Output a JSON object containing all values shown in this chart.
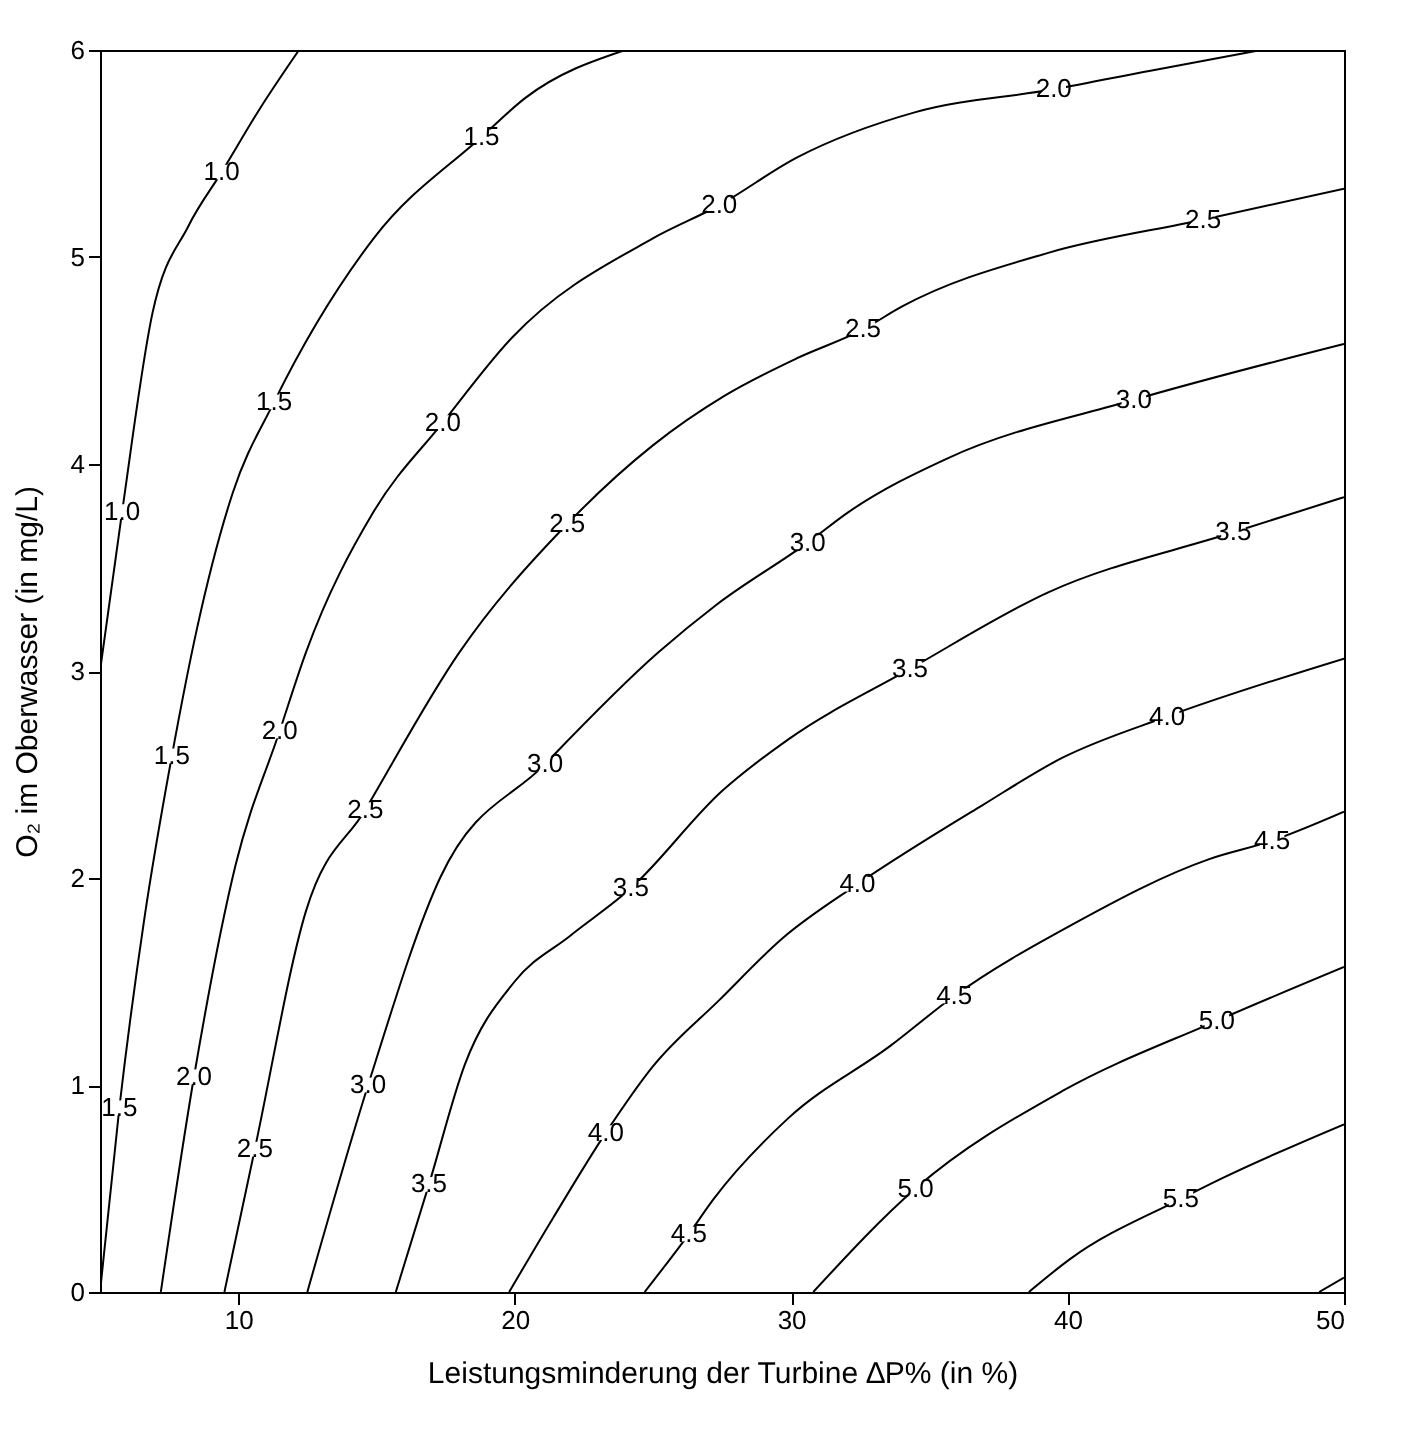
{
  "chart_data": {
    "type": "line",
    "xlabel": "Leistungsminderung der Turbine ∆P%  (in %)",
    "ylabel": "O₂ im Oberwasser (in mg/L)",
    "xlim": [
      5,
      50
    ],
    "xticks": [
      10,
      20,
      30,
      40,
      50
    ],
    "ylim": [
      0,
      6
    ],
    "yticks": [
      0,
      1,
      2,
      3,
      4,
      5,
      6
    ],
    "grid": false,
    "marker": "none",
    "line_style": "solid",
    "series": [
      {
        "color": "#000000",
        "x": [
          5,
          5.8,
          6.9,
          8.2,
          9.4,
          10.8,
          12.2
        ],
        "values": [
          3.0,
          3.77,
          4.73,
          5.15,
          5.41,
          5.72,
          6.0
        ]
      },
      {
        "color": "#000000",
        "x": [
          5,
          5.7,
          6.6,
          7.6,
          8.5,
          9.8,
          11.3,
          14.9,
          18.8,
          20.4,
          24.0
        ],
        "values": [
          0,
          0.89,
          1.8,
          2.59,
          3.2,
          3.86,
          4.3,
          5.09,
          5.58,
          5.77,
          6.0
        ]
      },
      {
        "color": "#000000",
        "x": [
          7.2,
          8.4,
          9.9,
          11.5,
          12.45,
          14.9,
          17.4,
          19.9,
          25.0,
          27.4,
          30.2,
          34.5,
          39.5,
          43.0,
          47.0
        ],
        "values": [
          0,
          1.04,
          2.06,
          2.71,
          3.09,
          3.77,
          4.2,
          4.61,
          5.09,
          5.25,
          5.48,
          5.7,
          5.81,
          5.9,
          6.0
        ]
      },
      {
        "color": "#000000",
        "x": [
          9.5,
          10.6,
          12.45,
          14.6,
          18.0,
          21.9,
          25.0,
          27.6,
          30.2,
          32.6,
          34.0,
          39.3,
          44.9,
          50
        ],
        "values": [
          0,
          0.69,
          1.84,
          2.33,
          3.09,
          3.71,
          4.09,
          4.33,
          4.51,
          4.65,
          4.76,
          5.02,
          5.18,
          5.33
        ]
      },
      {
        "color": "#000000",
        "x": [
          12.5,
          14.7,
          17.3,
          21.1,
          25.2,
          27.3,
          30.6,
          32.1,
          35.7,
          42.4,
          50
        ],
        "values": [
          0,
          1.0,
          2.0,
          2.55,
          3.09,
          3.32,
          3.62,
          3.77,
          4.03,
          4.31,
          4.58
        ]
      },
      {
        "color": "#000000",
        "x": [
          15.7,
          16.9,
          18.2,
          20.0,
          22.0,
          24.2,
          27.5,
          29.9,
          34.3,
          39.3,
          46.0,
          50
        ],
        "values": [
          0,
          0.52,
          1.1,
          1.5,
          1.72,
          1.95,
          2.42,
          2.67,
          3.01,
          3.38,
          3.67,
          3.84
        ]
      },
      {
        "color": "#000000",
        "x": [
          19.8,
          21.4,
          23.3,
          25.0,
          27.4,
          29.7,
          32.4,
          36.9,
          39.8,
          43.6,
          50
        ],
        "values": [
          0,
          0.36,
          0.77,
          1.09,
          1.41,
          1.71,
          1.97,
          2.35,
          2.58,
          2.78,
          3.06
        ]
      },
      {
        "color": "#000000",
        "x": [
          24.7,
          26.3,
          27.2,
          29.9,
          33.6,
          35.9,
          40.1,
          45.1,
          47.4,
          50
        ],
        "values": [
          0,
          0.28,
          0.45,
          0.84,
          1.19,
          1.43,
          1.77,
          2.09,
          2.18,
          2.32
        ]
      },
      {
        "color": "#000000",
        "x": [
          30.8,
          34.5,
          39.8,
          45.4,
          50
        ],
        "values": [
          0,
          0.5,
          0.97,
          1.31,
          1.57
        ]
      },
      {
        "color": "#000000",
        "x": [
          38.6,
          40.1,
          44.1,
          45.6,
          50
        ],
        "values": [
          0,
          0.16,
          0.45,
          0.55,
          0.81
        ]
      },
      {
        "color": "#000000",
        "x": [
          49.1,
          50
        ],
        "values": [
          0,
          0.07
        ]
      }
    ],
    "annotations": [
      {
        "text": "1.0",
        "x": 9.4,
        "y": 5.41
      },
      {
        "text": "1.0",
        "x": 5.8,
        "y": 3.77
      },
      {
        "text": "1.5",
        "x": 18.8,
        "y": 5.58
      },
      {
        "text": "1.5",
        "x": 11.3,
        "y": 4.3
      },
      {
        "text": "1.5",
        "x": 7.6,
        "y": 2.59
      },
      {
        "text": "1.5",
        "x": 5.7,
        "y": 0.89
      },
      {
        "text": "2.0",
        "x": 39.5,
        "y": 5.81
      },
      {
        "text": "2.0",
        "x": 27.4,
        "y": 5.25
      },
      {
        "text": "2.0",
        "x": 17.4,
        "y": 4.2
      },
      {
        "text": "2.0",
        "x": 11.5,
        "y": 2.71
      },
      {
        "text": "2.0",
        "x": 8.4,
        "y": 1.04
      },
      {
        "text": "2.5",
        "x": 44.9,
        "y": 5.18
      },
      {
        "text": "2.5",
        "x": 32.6,
        "y": 4.65
      },
      {
        "text": "2.5",
        "x": 21.9,
        "y": 3.71
      },
      {
        "text": "2.5",
        "x": 14.6,
        "y": 2.33
      },
      {
        "text": "2.5",
        "x": 10.6,
        "y": 0.69
      },
      {
        "text": "3.0",
        "x": 42.4,
        "y": 4.31
      },
      {
        "text": "3.0",
        "x": 30.6,
        "y": 3.62
      },
      {
        "text": "3.0",
        "x": 21.1,
        "y": 2.55
      },
      {
        "text": "3.0",
        "x": 14.7,
        "y": 1.0
      },
      {
        "text": "3.5",
        "x": 46.0,
        "y": 3.67
      },
      {
        "text": "3.5",
        "x": 34.3,
        "y": 3.01
      },
      {
        "text": "3.5",
        "x": 24.2,
        "y": 1.95
      },
      {
        "text": "3.5",
        "x": 16.9,
        "y": 0.52
      },
      {
        "text": "4.0",
        "x": 43.6,
        "y": 2.78
      },
      {
        "text": "4.0",
        "x": 32.4,
        "y": 1.97
      },
      {
        "text": "4.0",
        "x": 23.3,
        "y": 0.77
      },
      {
        "text": "4.5",
        "x": 47.4,
        "y": 2.18
      },
      {
        "text": "4.5",
        "x": 35.9,
        "y": 1.43
      },
      {
        "text": "4.5",
        "x": 26.3,
        "y": 0.28
      },
      {
        "text": "5.0",
        "x": 45.4,
        "y": 1.31
      },
      {
        "text": "5.0",
        "x": 34.5,
        "y": 0.5
      },
      {
        "text": "5.5",
        "x": 44.1,
        "y": 0.45
      }
    ]
  }
}
